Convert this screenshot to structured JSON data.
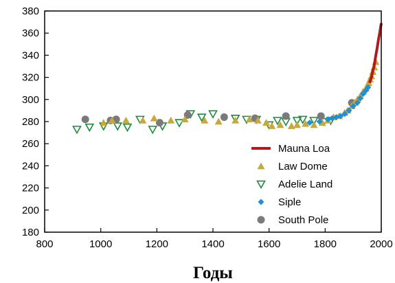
{
  "chart_data": {
    "type": "scatter",
    "title": "",
    "xlabel": "Годы",
    "ylabel": "",
    "xlim": [
      800,
      2000
    ],
    "ylim": [
      180,
      380
    ],
    "x_ticks": [
      800,
      1000,
      1200,
      1400,
      1600,
      1800,
      2000
    ],
    "y_ticks": [
      180,
      200,
      220,
      240,
      260,
      280,
      300,
      320,
      340,
      360,
      380
    ],
    "grid": false,
    "legend_position": "bottom-right",
    "series": [
      {
        "name": "Mauna Loa",
        "marker": "line",
        "color": "#b01c1c",
        "points": [
          [
            1958,
            315
          ],
          [
            1965,
            320
          ],
          [
            1970,
            326
          ],
          [
            1975,
            331
          ],
          [
            1980,
            339
          ],
          [
            1985,
            346
          ],
          [
            1990,
            354
          ],
          [
            1995,
            361
          ],
          [
            2000,
            369
          ]
        ]
      },
      {
        "name": "Law Dome",
        "marker": "triangle-up",
        "color": "#c8a83a",
        "points": [
          [
            1010,
            279
          ],
          [
            1040,
            281
          ],
          [
            1090,
            281
          ],
          [
            1150,
            281
          ],
          [
            1190,
            283
          ],
          [
            1250,
            281
          ],
          [
            1300,
            282
          ],
          [
            1370,
            281
          ],
          [
            1420,
            280
          ],
          [
            1480,
            281
          ],
          [
            1530,
            282
          ],
          [
            1560,
            281
          ],
          [
            1590,
            279
          ],
          [
            1610,
            276
          ],
          [
            1640,
            277
          ],
          [
            1680,
            276
          ],
          [
            1700,
            277
          ],
          [
            1730,
            278
          ],
          [
            1760,
            277
          ],
          [
            1790,
            279
          ],
          [
            1810,
            281
          ],
          [
            1830,
            284
          ],
          [
            1850,
            285
          ],
          [
            1870,
            288
          ],
          [
            1880,
            290
          ],
          [
            1895,
            294
          ],
          [
            1905,
            297
          ],
          [
            1915,
            300
          ],
          [
            1925,
            303
          ],
          [
            1935,
            307
          ],
          [
            1945,
            310
          ],
          [
            1955,
            315
          ],
          [
            1960,
            318
          ],
          [
            1965,
            321
          ],
          [
            1970,
            325
          ],
          [
            1975,
            329
          ],
          [
            1980,
            334
          ]
        ]
      },
      {
        "name": "Adelie Land",
        "marker": "triangle-down-open",
        "color": "#1e8a3a",
        "points": [
          [
            915,
            273
          ],
          [
            960,
            275
          ],
          [
            1010,
            276
          ],
          [
            1060,
            276
          ],
          [
            1095,
            275
          ],
          [
            1140,
            282
          ],
          [
            1185,
            273
          ],
          [
            1220,
            276
          ],
          [
            1280,
            279
          ],
          [
            1320,
            287
          ],
          [
            1360,
            284
          ],
          [
            1400,
            287
          ],
          [
            1480,
            283
          ],
          [
            1520,
            282
          ],
          [
            1555,
            282
          ],
          [
            1600,
            277
          ],
          [
            1630,
            281
          ],
          [
            1660,
            280
          ],
          [
            1700,
            281
          ],
          [
            1720,
            282
          ],
          [
            1760,
            281
          ],
          [
            1795,
            280
          ],
          [
            1820,
            281
          ]
        ]
      },
      {
        "name": "Siple",
        "marker": "diamond",
        "color": "#1e90d8",
        "points": [
          [
            1745,
            279
          ],
          [
            1780,
            280
          ],
          [
            1810,
            282
          ],
          [
            1825,
            283
          ],
          [
            1840,
            284
          ],
          [
            1855,
            285
          ],
          [
            1870,
            287
          ],
          [
            1885,
            290
          ],
          [
            1900,
            294
          ],
          [
            1915,
            297
          ],
          [
            1925,
            301
          ],
          [
            1935,
            305
          ],
          [
            1945,
            308
          ],
          [
            1953,
            311
          ]
        ]
      },
      {
        "name": "South Pole",
        "marker": "circle",
        "color": "#7a7a7a",
        "points": [
          [
            945,
            282
          ],
          [
            1035,
            281
          ],
          [
            1055,
            282
          ],
          [
            1210,
            279
          ],
          [
            1310,
            286
          ],
          [
            1440,
            284
          ],
          [
            1550,
            283
          ],
          [
            1660,
            285
          ],
          [
            1785,
            285
          ],
          [
            1895,
            297
          ]
        ]
      }
    ]
  }
}
